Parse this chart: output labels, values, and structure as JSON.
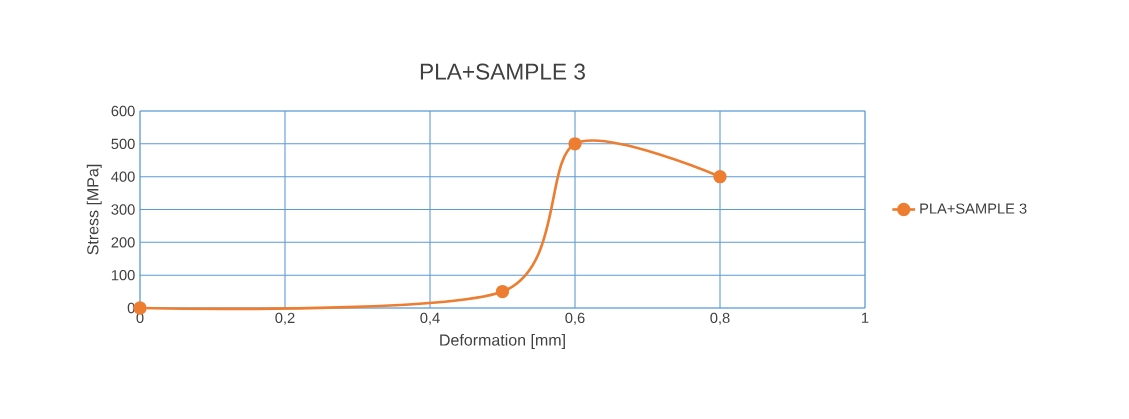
{
  "chart_data": {
    "type": "line",
    "title": "PLA+SAMPLE 3",
    "xlabel": "Deformation [mm]",
    "ylabel": "Stress [MPa]",
    "x": [
      0,
      0.5,
      0.6,
      0.8
    ],
    "series": [
      {
        "name": "PLA+SAMPLE 3",
        "color": "#ed7d31",
        "values": [
          0,
          50,
          500,
          400
        ]
      }
    ],
    "xlim": [
      0,
      1
    ],
    "ylim": [
      0,
      600
    ],
    "xticks": [
      0,
      {
        "value": 0.2,
        "label": "0,2"
      },
      {
        "value": 0.4,
        "label": "0,4"
      },
      {
        "value": 0.6,
        "label": "0,6"
      },
      {
        "value": 0.8,
        "label": "0,8"
      },
      1
    ],
    "yticks": [
      0,
      100,
      200,
      300,
      400,
      500,
      600
    ],
    "grid": true,
    "legend": "right",
    "marker": "circle"
  }
}
